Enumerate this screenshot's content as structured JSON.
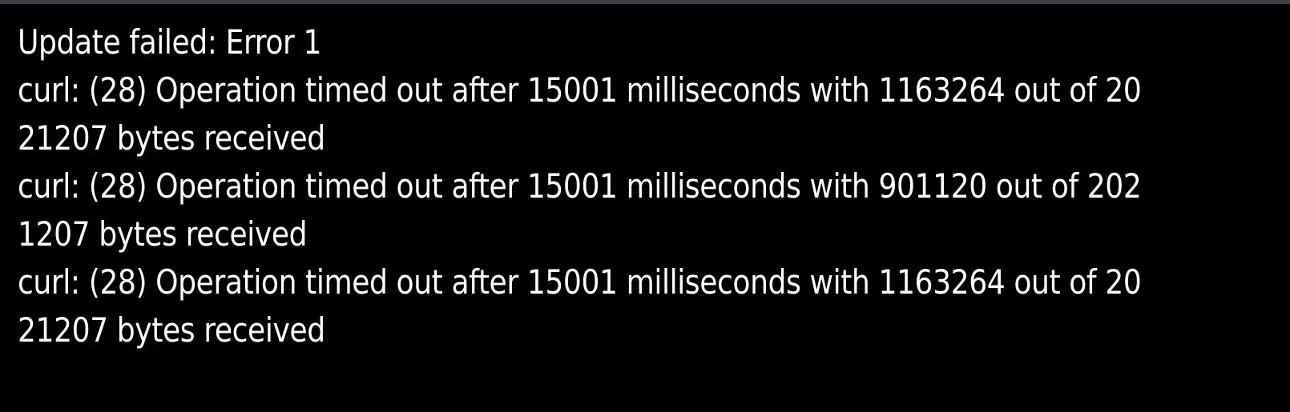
{
  "colors": {
    "background": "#000000",
    "text": "#ffffff",
    "top_border": "#3a4048"
  },
  "console": {
    "lines": [
      "Update failed: Error 1",
      "curl: (28) Operation timed out after 15001 milliseconds with 1163264 out of 20",
      "21207 bytes received",
      "curl: (28) Operation timed out after 15001 milliseconds with 901120 out of 202",
      "1207 bytes received",
      "curl: (28) Operation timed out after 15001 milliseconds with 1163264 out of 20",
      "21207 bytes received"
    ]
  }
}
